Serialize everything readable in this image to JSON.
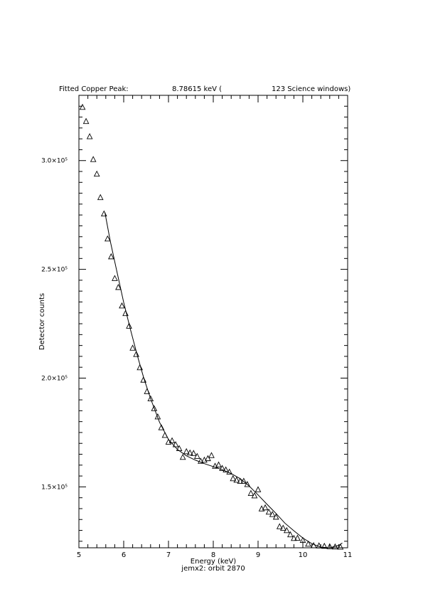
{
  "header": {
    "prefix": "Fitted Copper Peak:",
    "energy": "8.78615 keV (",
    "windows": "123 Science windows)"
  },
  "chart_data": {
    "type": "scatter",
    "xlabel": "Energy (keV)",
    "ylabel": "Detector counts",
    "subtitle": "jemx2: orbit 2870",
    "xlim": [
      5,
      11
    ],
    "ylim": [
      122000,
      330000
    ],
    "x_ticks": [
      5,
      6,
      7,
      8,
      9,
      10,
      11
    ],
    "y_ticks": [
      {
        "value": 150000,
        "label": "1.5×10⁵"
      },
      {
        "value": 200000,
        "label": "2.0×10⁵"
      },
      {
        "value": 250000,
        "label": "2.5×10⁵"
      },
      {
        "value": 300000,
        "label": "3.0×10⁵"
      }
    ],
    "series": [
      {
        "marker": "triangle",
        "x": [
          5.08,
          5.16,
          5.24,
          5.32,
          5.4,
          5.48,
          5.56,
          5.64,
          5.72,
          5.8,
          5.88,
          5.96,
          6.04,
          6.12,
          6.2,
          6.28,
          6.36,
          6.44,
          6.52,
          6.6,
          6.68,
          6.76,
          6.84,
          6.92,
          7.0,
          7.08,
          7.16,
          7.24,
          7.32,
          7.4,
          7.48,
          7.56,
          7.64,
          7.72,
          7.8,
          7.88,
          7.96,
          8.04,
          8.12,
          8.2,
          8.28,
          8.36,
          8.44,
          8.52,
          8.6,
          8.68,
          8.76,
          8.84,
          8.92,
          9.0,
          9.08,
          9.16,
          9.24,
          9.32,
          9.4,
          9.48,
          9.56,
          9.64,
          9.72,
          9.8,
          9.88,
          10.0,
          10.12,
          10.24,
          10.36,
          10.48,
          10.6,
          10.72,
          10.84
        ],
        "y": [
          324500,
          318000,
          311000,
          300500,
          293800,
          283000,
          275500,
          264000,
          255800,
          245800,
          241700,
          233200,
          229700,
          223900,
          213800,
          210900,
          204800,
          199100,
          193800,
          190500,
          186000,
          182200,
          177200,
          173700,
          170600,
          171200,
          169400,
          167600,
          163600,
          166200,
          165600,
          165400,
          164000,
          161800,
          162300,
          163000,
          164400,
          159500,
          160100,
          158500,
          157800,
          156800,
          153800,
          153100,
          152600,
          152600,
          151100,
          147000,
          145900,
          148700,
          139900,
          140400,
          138400,
          137300,
          136100,
          131700,
          131000,
          129900,
          128000,
          126300,
          126400,
          125400,
          123700,
          123000,
          122900,
          122700,
          122500,
          122400,
          122300
        ]
      },
      {
        "style": "line",
        "x": [
          5.58,
          5.7,
          5.85,
          6.0,
          6.15,
          6.3,
          6.45,
          6.6,
          6.8,
          7.0,
          7.2,
          7.4,
          7.6,
          7.8,
          8.0,
          8.2,
          8.4,
          8.6,
          8.8,
          9.0,
          9.2,
          9.4,
          9.6,
          9.8,
          10.0,
          10.2,
          10.4,
          10.6,
          10.8,
          10.88
        ],
        "y": [
          276200,
          263000,
          248800,
          234800,
          222400,
          210700,
          199900,
          190600,
          179700,
          171800,
          167200,
          164300,
          162300,
          160700,
          159300,
          157900,
          156100,
          153800,
          150400,
          146300,
          142000,
          137800,
          133300,
          129800,
          126500,
          123900,
          122300,
          122000,
          123100,
          124200
        ]
      }
    ]
  }
}
